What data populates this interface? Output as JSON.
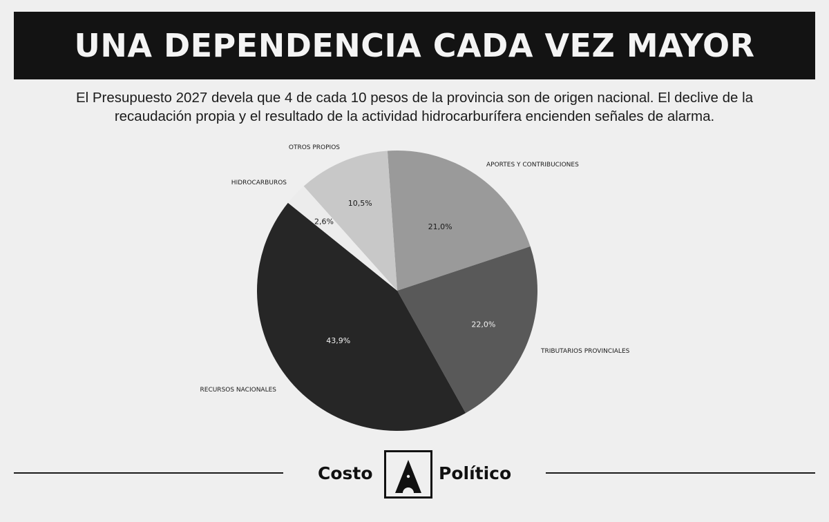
{
  "header": {
    "title": "UNA DEPENDENCIA CADA VEZ MAYOR",
    "subtitle_line1": "El Presupuesto 2027 devela que 4 de cada 10 pesos de la provincia son de origen nacional. El declive de la",
    "subtitle_line2": "recaudación propia y el resultado de la actividad hidrocarburífera encienden señales de alarma."
  },
  "chart_data": {
    "type": "pie",
    "slices": [
      {
        "label": "APORTES Y CONTRIBUCIONES",
        "value": 21.0,
        "value_label": "21,0%",
        "color": "#9a9a9a"
      },
      {
        "label": "TRIBUTARIOS PROVINCIALES",
        "value": 22.0,
        "value_label": "22,0%",
        "color": "#595959"
      },
      {
        "label": "RECURSOS NACIONALES",
        "value": 43.9,
        "value_label": "43,9%",
        "color": "#262626"
      },
      {
        "label": "HIDROCARBUROS",
        "value": 2.6,
        "value_label": "2,6%",
        "color": "#ececec"
      },
      {
        "label": "OTROS PROPIOS",
        "value": 10.5,
        "value_label": "10,5%",
        "color": "#c8c8c8"
      }
    ]
  },
  "footer": {
    "brand_left": "Costo",
    "brand_right": "Político"
  }
}
